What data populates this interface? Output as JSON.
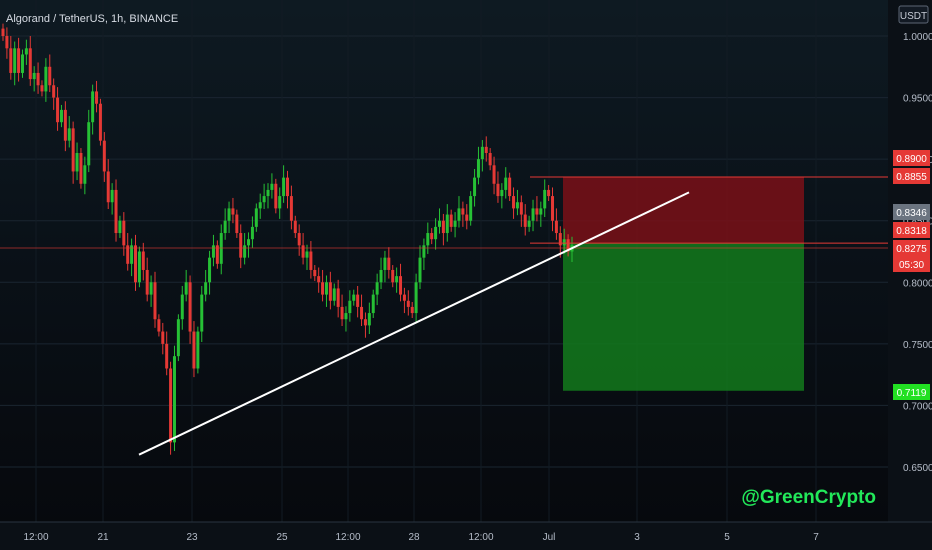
{
  "header": {
    "title": "Algorand / TetherUS, 1h, BINANCE",
    "currency_button": "USDT"
  },
  "watermark": "@GreenCrypto",
  "colors": {
    "up": "#26c035",
    "down": "#e53935",
    "stop_zone": "#7a1117",
    "target_zone": "#137a1c",
    "trendline": "#ffffff"
  },
  "chart_data": {
    "type": "candlestick",
    "y_axis": {
      "ticks": [
        "1.0000",
        "0.9500",
        "0.9000",
        "0.8500",
        "0.8000",
        "0.7500",
        "0.7000",
        "0.6500"
      ],
      "range": [
        0.615,
        1.01
      ]
    },
    "x_axis": {
      "ticks": [
        "12:00",
        "21",
        "23",
        "25",
        "12:00",
        "28",
        "12:00",
        "Jul",
        "3",
        "5",
        "7"
      ]
    },
    "price_labels": [
      {
        "value": "0.8900",
        "color": "#e53935"
      },
      {
        "value": "0.8855",
        "color": "#e53935"
      },
      {
        "value": "0.8346",
        "color": "#6b7480"
      },
      {
        "value": "0.8318",
        "color": "#e53935"
      },
      {
        "value": "0.8275",
        "color": "#e53935"
      },
      {
        "value": "05:30",
        "color": "#e53935"
      },
      {
        "value": "0.7119",
        "color": "#22e022"
      }
    ],
    "position": {
      "entry": 0.8318,
      "stop": 0.8855,
      "target": 0.7119
    },
    "trendline": {
      "from": 0.66,
      "to": 0.8855
    },
    "series": [
      {
        "values": [
          1.0,
          0.99,
          0.97,
          0.99,
          0.97,
          0.985,
          0.99,
          0.965,
          0.97,
          0.96,
          0.955,
          0.975,
          0.96,
          0.95,
          0.93,
          0.94,
          0.915,
          0.925,
          0.89,
          0.905,
          0.88,
          0.895,
          0.93,
          0.955,
          0.945,
          0.915,
          0.89,
          0.865,
          0.875,
          0.84,
          0.85,
          0.83,
          0.815,
          0.83,
          0.8,
          0.825,
          0.81,
          0.79,
          0.8,
          0.77,
          0.76,
          0.75,
          0.73,
          0.67,
          0.74,
          0.77,
          0.79,
          0.8,
          0.76,
          0.73,
          0.76,
          0.79,
          0.8,
          0.82,
          0.83,
          0.815,
          0.84,
          0.85,
          0.86,
          0.855,
          0.84,
          0.82,
          0.83,
          0.835,
          0.845,
          0.86,
          0.865,
          0.87,
          0.875,
          0.88,
          0.86,
          0.87,
          0.885,
          0.87,
          0.85,
          0.84,
          0.83,
          0.82,
          0.825,
          0.81,
          0.805,
          0.8,
          0.79,
          0.8,
          0.785,
          0.795,
          0.78,
          0.77,
          0.775,
          0.785,
          0.79,
          0.78,
          0.77,
          0.765,
          0.775,
          0.79,
          0.8,
          0.81,
          0.82,
          0.81,
          0.8,
          0.805,
          0.79,
          0.785,
          0.78,
          0.775,
          0.8,
          0.82,
          0.83,
          0.84,
          0.835,
          0.845,
          0.85,
          0.84,
          0.855,
          0.845,
          0.85,
          0.86,
          0.855,
          0.85,
          0.87,
          0.885,
          0.9,
          0.91,
          0.905,
          0.895,
          0.88,
          0.87,
          0.875,
          0.885,
          0.87,
          0.86,
          0.865,
          0.855,
          0.845,
          0.85,
          0.86,
          0.855,
          0.86,
          0.875,
          0.87,
          0.85,
          0.84,
          0.83,
          0.835,
          0.825,
          0.83
        ]
      }
    ]
  }
}
